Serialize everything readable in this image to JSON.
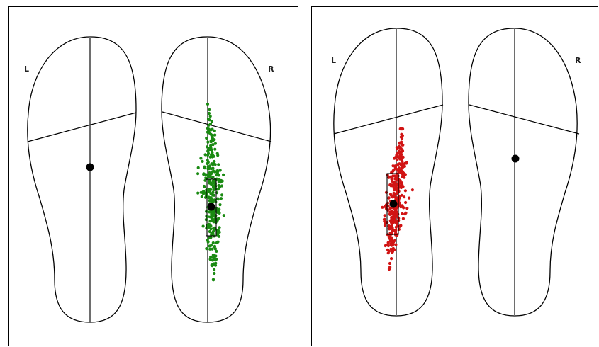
{
  "panels": [
    {
      "id": "left",
      "left_label": "L",
      "right_label": "R",
      "active_foot": "R",
      "point_color": "#1a8a12",
      "point_count": 300
    },
    {
      "id": "right",
      "left_label": "L",
      "right_label": "R",
      "active_foot": "L",
      "point_color": "#d11414",
      "point_count": 340
    }
  ]
}
